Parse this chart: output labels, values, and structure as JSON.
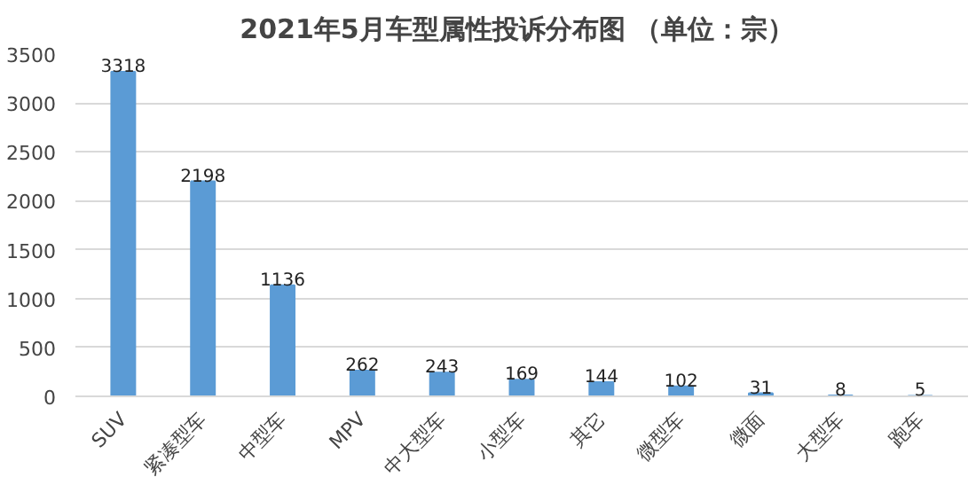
{
  "chart_data": {
    "type": "bar",
    "title": "2021年5月车型属性投诉分布图",
    "subtitle": "（单位：宗）",
    "categories": [
      "SUV",
      "紧凑型车",
      "中型车",
      "MPV",
      "中大型车",
      "小型车",
      "其它",
      "微型车",
      "微面",
      "大型车",
      "跑车"
    ],
    "values": [
      3318,
      2198,
      1136,
      262,
      243,
      169,
      144,
      102,
      31,
      8,
      5
    ],
    "color": "#5b9bd5",
    "ylim": [
      0,
      3500
    ],
    "yticks": [
      0,
      500,
      1000,
      1500,
      2000,
      2500,
      3000,
      3500
    ],
    "grid": "y",
    "data_labels": true
  }
}
